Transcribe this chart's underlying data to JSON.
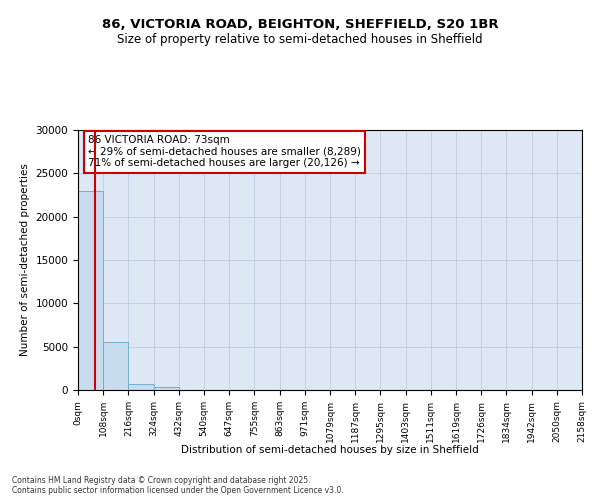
{
  "title_line1": "86, VICTORIA ROAD, BEIGHTON, SHEFFIELD, S20 1BR",
  "title_line2": "Size of property relative to semi-detached houses in Sheffield",
  "xlabel": "Distribution of semi-detached houses by size in Sheffield",
  "ylabel": "Number of semi-detached properties",
  "footnote": "Contains HM Land Registry data © Crown copyright and database right 2025.\nContains public sector information licensed under the Open Government Licence v3.0.",
  "annotation_title": "86 VICTORIA ROAD: 73sqm",
  "annotation_line1": "← 29% of semi-detached houses are smaller (8,289)",
  "annotation_line2": "71% of semi-detached houses are larger (20,126) →",
  "property_size": 73,
  "bin_width": 108,
  "bar_values": [
    23000,
    5500,
    700,
    300,
    0,
    0,
    0,
    0,
    0,
    0,
    0,
    0,
    0,
    0,
    0,
    0,
    0,
    0,
    0,
    0
  ],
  "bar_color": "#c8dcf0",
  "bar_edge_color": "#7aabcc",
  "vline_color": "#cc0000",
  "annotation_box_color": "#cc0000",
  "plot_bg_color": "#dde8f4",
  "background_color": "#ffffff",
  "grid_color": "#b8c8d8",
  "ylim": [
    0,
    30000
  ],
  "xlim": [
    0,
    2158
  ],
  "yticks": [
    0,
    5000,
    10000,
    15000,
    20000,
    25000,
    30000
  ],
  "xtick_labels": [
    "0sqm",
    "108sqm",
    "216sqm",
    "324sqm",
    "432sqm",
    "540sqm",
    "647sqm",
    "755sqm",
    "863sqm",
    "971sqm",
    "1079sqm",
    "1187sqm",
    "1295sqm",
    "1403sqm",
    "1511sqm",
    "1619sqm",
    "1726sqm",
    "1834sqm",
    "1942sqm",
    "2050sqm",
    "2158sqm"
  ]
}
